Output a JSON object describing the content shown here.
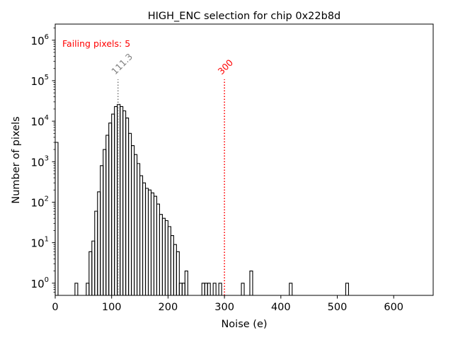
{
  "chart_data": {
    "type": "histogram",
    "title": "HIGH_ENC selection for chip 0x22b8d",
    "xlabel": "Noise (e)",
    "ylabel": "Number of pixels",
    "xlim": [
      0,
      670
    ],
    "ylim": [
      0.5,
      2500000
    ],
    "yscale": "log",
    "xticks": [
      0,
      100,
      200,
      300,
      400,
      500,
      600
    ],
    "xtick_labels": [
      "0",
      "100",
      "200",
      "300",
      "400",
      "500",
      "600"
    ],
    "yticks": [
      1,
      10,
      100,
      1000,
      10000,
      100000,
      1000000
    ],
    "ytick_labels": [
      {
        "base": "10",
        "exp": "0"
      },
      {
        "base": "10",
        "exp": "1"
      },
      {
        "base": "10",
        "exp": "2"
      },
      {
        "base": "10",
        "exp": "3"
      },
      {
        "base": "10",
        "exp": "4"
      },
      {
        "base": "10",
        "exp": "5"
      },
      {
        "base": "10",
        "exp": "6"
      }
    ],
    "bin_width": 5,
    "bins": [
      [
        0,
        3000
      ],
      [
        35,
        1
      ],
      [
        55,
        1
      ],
      [
        60,
        6
      ],
      [
        65,
        11
      ],
      [
        70,
        60
      ],
      [
        75,
        180
      ],
      [
        80,
        800
      ],
      [
        85,
        2000
      ],
      [
        90,
        4500
      ],
      [
        95,
        9000
      ],
      [
        100,
        15000
      ],
      [
        105,
        23000
      ],
      [
        110,
        26000
      ],
      [
        115,
        23000
      ],
      [
        120,
        18000
      ],
      [
        125,
        12000
      ],
      [
        130,
        5000
      ],
      [
        135,
        2500
      ],
      [
        140,
        1500
      ],
      [
        145,
        900
      ],
      [
        150,
        450
      ],
      [
        155,
        300
      ],
      [
        160,
        220
      ],
      [
        165,
        200
      ],
      [
        170,
        170
      ],
      [
        175,
        140
      ],
      [
        180,
        90
      ],
      [
        185,
        50
      ],
      [
        190,
        40
      ],
      [
        195,
        35
      ],
      [
        200,
        25
      ],
      [
        205,
        15
      ],
      [
        210,
        9
      ],
      [
        215,
        6
      ],
      [
        220,
        1
      ],
      [
        225,
        1
      ],
      [
        230,
        2
      ],
      [
        260,
        1
      ],
      [
        265,
        1
      ],
      [
        270,
        1
      ],
      [
        280,
        1
      ],
      [
        290,
        1
      ],
      [
        330,
        1
      ],
      [
        345,
        2
      ],
      [
        415,
        1
      ],
      [
        515,
        1
      ]
    ],
    "vlines": [
      {
        "x": 111.3,
        "label": "111.3",
        "color": "#808080"
      },
      {
        "x": 300,
        "label": "300",
        "color": "#ff0000"
      }
    ],
    "annotation": {
      "text": "Failing pixels: 5",
      "color": "#ff0000"
    },
    "line_color": "#000000"
  }
}
